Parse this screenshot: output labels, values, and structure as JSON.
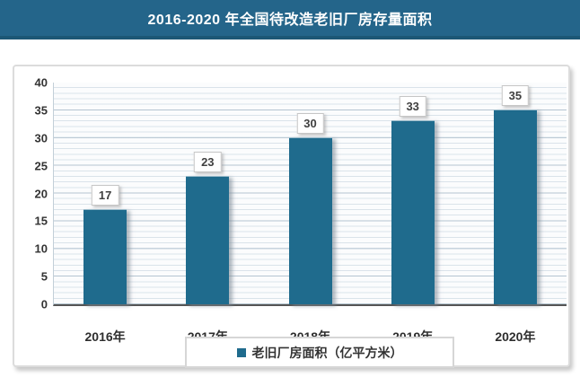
{
  "header": {
    "title": "2016-2020 年全国待改造老旧厂房存量面积",
    "bg_color": "#24658a",
    "border_color": "#1c5775",
    "text_color": "#ffffff"
  },
  "chart_data": {
    "type": "bar",
    "title": "2016-2020 年全国待改造老旧厂房存量面积",
    "categories": [
      "2016年",
      "2017年",
      "2018年",
      "2019年",
      "2020年"
    ],
    "values": [
      17,
      23,
      30,
      33,
      35
    ],
    "series_name": "老旧厂房面积（亿平方米）",
    "xlabel": "",
    "ylabel": "",
    "ylim": [
      0,
      40
    ],
    "yticks": [
      0,
      5,
      10,
      15,
      20,
      25,
      30,
      35,
      40
    ],
    "minor_grid_step": 1,
    "major_grid_step": 5,
    "grid": "horizontal",
    "legend_position": "bottom",
    "bar_color": "#1f6b8d",
    "value_labels_shown": true
  },
  "legend": {
    "label": "老旧厂房面积（亿平方米）",
    "marker_color": "#1f6b8d"
  },
  "colors": {
    "accent_teal": "#1f6b8d",
    "grid_minor": "#c6d4de",
    "grid_major": "#a9bfcc",
    "axis_line": "#555555",
    "panel_border": "#dcdcdc",
    "label_text": "#404040"
  }
}
